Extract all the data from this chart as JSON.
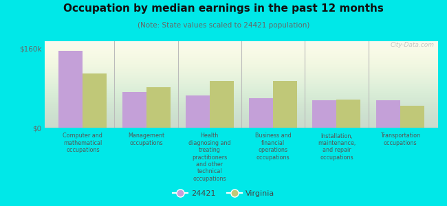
{
  "title": "Occupation by median earnings in the past 12 months",
  "subtitle": "(Note: State values scaled to 24421 population)",
  "background_color": "#00e8e8",
  "plot_bg_top": "#f8faf0",
  "plot_bg_bottom": "#e8f0d0",
  "categories": [
    "Computer and\nmathematical\noccupations",
    "Management\noccupations",
    "Health\ndiagnosing and\ntreating\npractitioners\nand other\ntechnical\noccupations",
    "Business and\nfinancial\noperations\noccupations",
    "Installation,\nmaintenance,\nand repair\noccupations",
    "Transportation\noccupations"
  ],
  "values_24421": [
    155000,
    72000,
    65000,
    60000,
    55000,
    55000
  ],
  "values_virginia": [
    110000,
    82000,
    95000,
    95000,
    57000,
    45000
  ],
  "color_24421": "#c4a0d8",
  "color_virginia": "#c0c878",
  "legend_labels": [
    "24421",
    "Virginia"
  ],
  "yticks": [
    0,
    160000
  ],
  "ytick_labels": [
    "$0",
    "$160k"
  ],
  "ylim": [
    0,
    175000
  ],
  "bar_width": 0.38,
  "watermark": "City-Data.com"
}
